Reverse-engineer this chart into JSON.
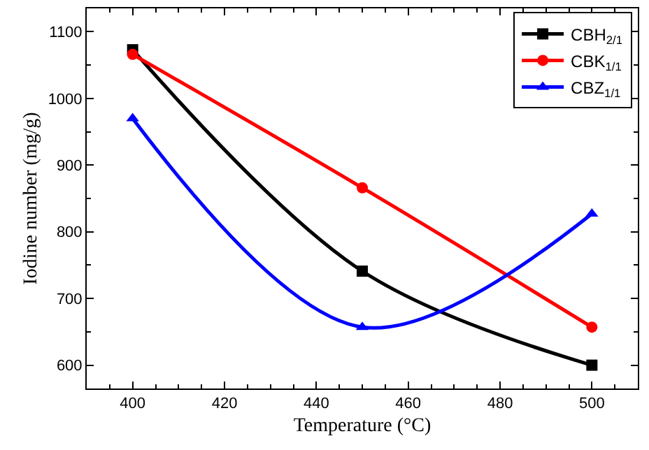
{
  "chart_data": {
    "type": "line",
    "xlabel": "Temperature (°C)",
    "ylabel": "Iodine number (mg/g)",
    "x": [
      400,
      450,
      500
    ],
    "series": [
      {
        "name": "CBH$_{2/1}$",
        "color": "#000000",
        "marker": "square",
        "values": [
          1073,
          741,
          600
        ]
      },
      {
        "name": "CBK$_{1/1}$",
        "color": "#ff0000",
        "marker": "circle",
        "values": [
          1066,
          866,
          657
        ]
      },
      {
        "name": "CBZ$_{1/1}$",
        "color": "#0000ff",
        "marker": "triangle",
        "values": [
          970,
          657,
          827
        ]
      }
    ],
    "xlim": [
      390,
      510
    ],
    "xticks": [
      400,
      420,
      440,
      460,
      480,
      500
    ],
    "ylim": [
      565,
      1135
    ],
    "yticks": [
      600,
      700,
      800,
      900,
      1000,
      1100
    ],
    "legend": "top right",
    "line_style": "solid"
  }
}
